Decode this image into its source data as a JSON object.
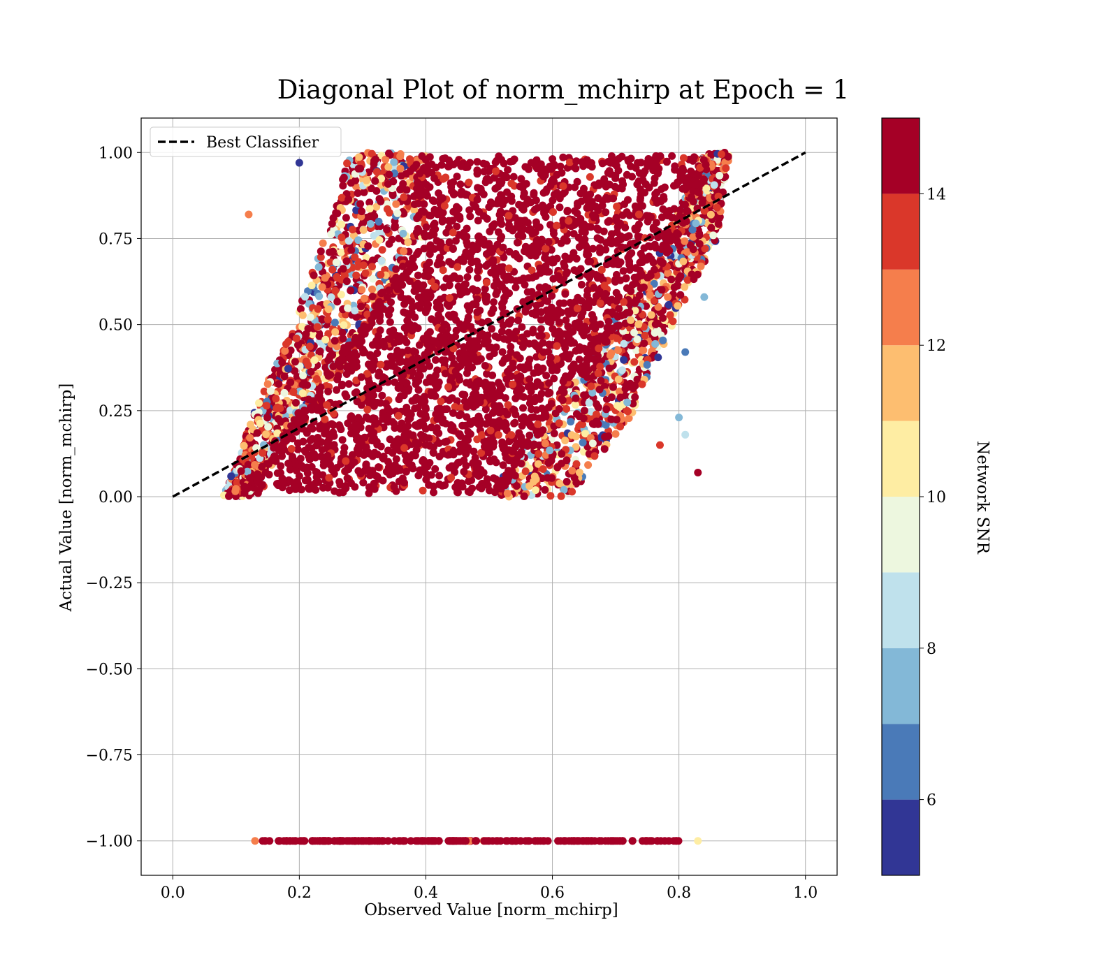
{
  "chart_data": {
    "type": "scatter",
    "title": "Diagonal Plot of norm_mchirp at Epoch = 1",
    "xlabel": "Observed Value [norm_mchirp]",
    "ylabel": "Actual Value [norm_mchirp]",
    "xlim": [
      -0.05,
      1.05
    ],
    "ylim": [
      -1.1,
      1.1
    ],
    "x_ticks": [
      0.0,
      0.2,
      0.4,
      0.6,
      0.8,
      1.0
    ],
    "x_tick_labels": [
      "0.0",
      "0.2",
      "0.4",
      "0.6",
      "0.8",
      "1.0"
    ],
    "y_ticks": [
      1.0,
      0.75,
      0.5,
      0.25,
      0.0,
      -0.25,
      -0.5,
      -0.75,
      -1.0
    ],
    "y_tick_labels": [
      "1.00",
      "0.75",
      "0.50",
      "0.25",
      "0.00",
      "−0.25",
      "−0.50",
      "−0.75",
      "−1.00"
    ],
    "grid": true,
    "legend": {
      "placement": "upper-left",
      "entries": [
        {
          "label": "Best Classifier",
          "style": "dashed",
          "color": "#000000"
        }
      ]
    },
    "reference_line": {
      "name": "Best Classifier",
      "x": [
        0.0,
        1.0
      ],
      "y": [
        0.0,
        1.0
      ]
    },
    "main_cloud": {
      "y_range": [
        0.0,
        1.0
      ],
      "x_min_at_y": [
        [
          0.0,
          0.08
        ],
        [
          0.25,
          0.13
        ],
        [
          0.5,
          0.19
        ],
        [
          0.75,
          0.24
        ],
        [
          1.0,
          0.28
        ]
      ],
      "x_max_at_y": [
        [
          0.0,
          0.63
        ],
        [
          0.25,
          0.73
        ],
        [
          0.5,
          0.79
        ],
        [
          0.75,
          0.86
        ],
        [
          1.0,
          0.88
        ]
      ],
      "dense_core_x_min_at_y": [
        [
          0.0,
          0.1
        ],
        [
          0.25,
          0.2
        ],
        [
          0.5,
          0.3
        ],
        [
          0.75,
          0.38
        ],
        [
          1.0,
          0.38
        ]
      ],
      "dense_core_x_max_at_y": [
        [
          0.0,
          0.52
        ],
        [
          0.25,
          0.61
        ],
        [
          0.5,
          0.71
        ],
        [
          0.75,
          0.8
        ],
        [
          1.0,
          0.86
        ]
      ],
      "dominant_snr": 15
    },
    "failed_detection_band": {
      "y": -1.0,
      "x_range": [
        0.13,
        0.83
      ],
      "dominant_snr": 15
    },
    "outliers": [
      {
        "x": 0.83,
        "y": 0.07,
        "snr": 15
      },
      {
        "x": 0.81,
        "y": 0.42,
        "snr": 6
      },
      {
        "x": 0.8,
        "y": 0.23,
        "snr": 7
      },
      {
        "x": 0.84,
        "y": 0.58,
        "snr": 7
      },
      {
        "x": 0.2,
        "y": 0.97,
        "snr": 5
      },
      {
        "x": 0.12,
        "y": 0.82,
        "snr": 12
      },
      {
        "x": 0.81,
        "y": 0.18,
        "snr": 8
      },
      {
        "x": 0.77,
        "y": 0.15,
        "snr": 13
      }
    ],
    "colorbar": {
      "label": "Network SNR",
      "range": [
        5,
        15
      ],
      "ticks": [
        6,
        8,
        10,
        12,
        14
      ],
      "tick_labels": [
        "6",
        "8",
        "10",
        "12",
        "14"
      ],
      "bins": [
        {
          "from": 5,
          "to": 6,
          "color": "#313695"
        },
        {
          "from": 6,
          "to": 7,
          "color": "#4a7ab8"
        },
        {
          "from": 7,
          "to": 8,
          "color": "#83b8d7"
        },
        {
          "from": 8,
          "to": 9,
          "color": "#bfe1ec"
        },
        {
          "from": 9,
          "to": 10,
          "color": "#edf7df"
        },
        {
          "from": 10,
          "to": 11,
          "color": "#feeda3"
        },
        {
          "from": 11,
          "to": 12,
          "color": "#fdbe70"
        },
        {
          "from": 12,
          "to": 13,
          "color": "#f57e4c"
        },
        {
          "from": 13,
          "to": 14,
          "color": "#da372a"
        },
        {
          "from": 14,
          "to": 15,
          "color": "#a50026"
        }
      ]
    }
  }
}
